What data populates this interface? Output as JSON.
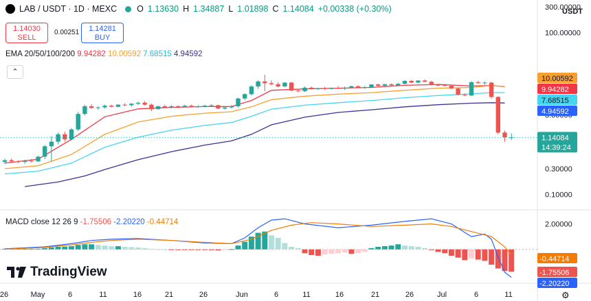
{
  "header": {
    "symbol": "LAB / USDT · 1D · MEXC",
    "open_label": "O",
    "open": "1.13630",
    "high_label": "H",
    "high": "1.34887",
    "low_label": "L",
    "low": "1.01898",
    "close_label": "C",
    "close": "1.14084",
    "change": "+0.00338 (+0.30%)"
  },
  "trade": {
    "sell_price": "1.14030",
    "sell_label": "SELL",
    "spread": "0.00251",
    "buy_price": "1.14281",
    "buy_label": "BUY"
  },
  "currency": "USDT",
  "ema_legend": {
    "name": "EMA 20/50/100/200",
    "v20": "9.94282",
    "v50": "10.00592",
    "v100": "7.68515",
    "v200": "4.94592"
  },
  "macd_legend": {
    "name": "MACD close 12 26 9",
    "hist": "-1.75506",
    "macd": "-2.20220",
    "signal": "-0.44714"
  },
  "brand": "TradingView",
  "icons": {
    "collapse": "chevron-up-icon",
    "settings": "gear-icon"
  },
  "colors": {
    "up": "#26a69a",
    "down": "#ef5350",
    "ema20": "#f23645",
    "ema50": "#f7a031",
    "ema100": "#43d6f0",
    "ema200": "#3c3094",
    "macd": "#2962ff",
    "signal": "#f57c00"
  },
  "chart_data": [
    {
      "type": "candlestick",
      "title": "LAB / USDT · 1D · MEXC",
      "yscale": "log",
      "ylim": [
        0.055,
        400
      ],
      "y_ticks": [
        "300.00000",
        "100.00000",
        "3.00000",
        "0.30000",
        "0.10000"
      ],
      "x_ticks": [
        "26",
        "May",
        "6",
        "11",
        "16",
        "21",
        "26",
        "Jun",
        "6",
        "11",
        "16",
        "21",
        "26",
        "Jul",
        "6",
        "11"
      ],
      "candles": [
        [
          0.4,
          0.46,
          0.37,
          0.43
        ],
        [
          0.43,
          0.46,
          0.4,
          0.41
        ],
        [
          0.41,
          0.43,
          0.38,
          0.4
        ],
        [
          0.4,
          0.44,
          0.37,
          0.42
        ],
        [
          0.42,
          0.45,
          0.39,
          0.41
        ],
        [
          0.41,
          0.52,
          0.4,
          0.5
        ],
        [
          0.5,
          0.82,
          0.45,
          0.78
        ],
        [
          0.78,
          1.2,
          0.4,
          0.95
        ],
        [
          0.95,
          1.4,
          0.85,
          1.3
        ],
        [
          1.3,
          1.45,
          0.95,
          1.05
        ],
        [
          1.05,
          1.7,
          1.0,
          1.6
        ],
        [
          1.6,
          3.4,
          1.5,
          3.1
        ],
        [
          3.1,
          4.6,
          2.9,
          4.3
        ],
        [
          4.3,
          4.7,
          3.9,
          4.0
        ],
        [
          4.0,
          4.3,
          3.7,
          4.1
        ],
        [
          4.1,
          4.6,
          3.9,
          4.4
        ],
        [
          4.4,
          4.6,
          4.1,
          4.2
        ],
        [
          4.2,
          4.7,
          4.1,
          4.6
        ],
        [
          4.6,
          4.9,
          4.3,
          4.5
        ],
        [
          4.5,
          4.9,
          4.2,
          4.8
        ],
        [
          4.8,
          5.2,
          4.5,
          5.0
        ],
        [
          5.0,
          5.4,
          4.4,
          4.6
        ],
        [
          4.6,
          4.8,
          3.5,
          3.8
        ],
        [
          3.8,
          4.4,
          3.7,
          4.3
        ],
        [
          4.3,
          4.6,
          4.0,
          4.1
        ],
        [
          4.1,
          4.5,
          3.9,
          4.3
        ],
        [
          4.3,
          4.5,
          4.0,
          4.2
        ],
        [
          4.2,
          4.6,
          4.1,
          4.4
        ],
        [
          4.4,
          4.6,
          4.1,
          4.2
        ],
        [
          4.2,
          4.5,
          4.0,
          4.3
        ],
        [
          4.3,
          4.6,
          4.1,
          4.4
        ],
        [
          4.4,
          4.7,
          4.2,
          4.5
        ],
        [
          4.5,
          4.6,
          3.8,
          3.9
        ],
        [
          3.9,
          4.2,
          3.7,
          4.1
        ],
        [
          4.1,
          4.5,
          3.9,
          4.3
        ],
        [
          4.3,
          6.2,
          4.1,
          6.0
        ],
        [
          6.0,
          7.5,
          5.6,
          7.2
        ],
        [
          7.2,
          10.5,
          6.8,
          10.0
        ],
        [
          10.0,
          13.0,
          9.0,
          12.4
        ],
        [
          12.4,
          16.5,
          8.2,
          11.5
        ],
        [
          11.5,
          13.0,
          10.5,
          11.0
        ],
        [
          11.0,
          12.0,
          9.7,
          10.0
        ],
        [
          10.0,
          12.0,
          9.8,
          11.8
        ],
        [
          11.8,
          12.2,
          8.1,
          8.4
        ],
        [
          8.4,
          9.0,
          7.8,
          8.2
        ],
        [
          8.2,
          10.0,
          7.9,
          9.5
        ],
        [
          9.5,
          10.0,
          8.8,
          9.0
        ],
        [
          9.0,
          9.5,
          8.7,
          9.3
        ],
        [
          9.3,
          9.8,
          8.6,
          9.0
        ],
        [
          9.0,
          9.6,
          8.8,
          9.4
        ],
        [
          9.4,
          10.2,
          8.9,
          9.1
        ],
        [
          9.1,
          10.0,
          8.6,
          9.4
        ],
        [
          9.4,
          10.3,
          9.2,
          10.1
        ],
        [
          10.1,
          10.5,
          9.4,
          9.6
        ],
        [
          9.6,
          10.2,
          9.0,
          9.7
        ],
        [
          9.7,
          11.0,
          9.4,
          10.9
        ],
        [
          10.9,
          11.3,
          10.0,
          10.3
        ],
        [
          10.3,
          11.2,
          10.1,
          11.0
        ],
        [
          11.0,
          11.4,
          10.2,
          10.5
        ],
        [
          10.5,
          11.6,
          10.3,
          11.2
        ],
        [
          11.2,
          13.0,
          10.9,
          12.7
        ],
        [
          12.7,
          13.2,
          11.6,
          11.8
        ],
        [
          11.8,
          13.0,
          11.5,
          12.9
        ],
        [
          12.9,
          13.5,
          12.0,
          12.2
        ],
        [
          12.2,
          12.8,
          10.4,
          10.7
        ],
        [
          10.7,
          11.2,
          10.2,
          10.6
        ],
        [
          10.6,
          11.1,
          10.1,
          10.3
        ],
        [
          10.3,
          10.8,
          9.0,
          9.2
        ],
        [
          9.2,
          9.6,
          6.8,
          7.0
        ],
        [
          7.0,
          7.4,
          6.6,
          6.8
        ],
        [
          6.8,
          12.5,
          6.6,
          12.0
        ],
        [
          12.0,
          12.8,
          11.2,
          11.6
        ],
        [
          11.6,
          12.3,
          10.8,
          11.8
        ],
        [
          11.8,
          12.2,
          6.0,
          6.4
        ],
        [
          6.4,
          6.6,
          1.3,
          1.4
        ],
        [
          1.4,
          1.52,
          0.95,
          1.14
        ],
        [
          1.136,
          1.349,
          1.019,
          1.141
        ]
      ],
      "ema": {
        "ema20": [
          [
            0,
            0.38
          ],
          [
            5,
            0.45
          ],
          [
            10,
            1.05
          ],
          [
            15,
            2.75
          ],
          [
            20,
            3.85
          ],
          [
            25,
            4.1
          ],
          [
            30,
            4.25
          ],
          [
            34,
            4.25
          ],
          [
            37,
            5.5
          ],
          [
            40,
            8.5
          ],
          [
            45,
            9.0
          ],
          [
            50,
            9.3
          ],
          [
            55,
            9.6
          ],
          [
            60,
            10.5
          ],
          [
            65,
            10.9
          ],
          [
            70,
            10.2
          ],
          [
            73,
            10.4
          ],
          [
            75,
            9.94
          ]
        ],
        "ema50": [
          [
            0,
            0.3
          ],
          [
            5,
            0.34
          ],
          [
            10,
            0.55
          ],
          [
            15,
            1.3
          ],
          [
            20,
            2.2
          ],
          [
            25,
            2.8
          ],
          [
            30,
            3.2
          ],
          [
            34,
            3.4
          ],
          [
            37,
            4.2
          ],
          [
            40,
            5.7
          ],
          [
            45,
            6.6
          ],
          [
            50,
            7.2
          ],
          [
            55,
            7.7
          ],
          [
            60,
            8.5
          ],
          [
            65,
            9.3
          ],
          [
            70,
            9.6
          ],
          [
            73,
            10.4
          ],
          [
            75,
            10.01
          ]
        ],
        "ema100": [
          [
            0,
            0.24
          ],
          [
            5,
            0.27
          ],
          [
            10,
            0.38
          ],
          [
            15,
            0.75
          ],
          [
            20,
            1.15
          ],
          [
            25,
            1.55
          ],
          [
            30,
            1.9
          ],
          [
            34,
            2.15
          ],
          [
            37,
            2.8
          ],
          [
            40,
            3.8
          ],
          [
            45,
            4.5
          ],
          [
            50,
            5.0
          ],
          [
            55,
            5.5
          ],
          [
            60,
            6.2
          ],
          [
            65,
            6.8
          ],
          [
            70,
            7.3
          ],
          [
            73,
            7.7
          ],
          [
            75,
            7.69
          ]
        ],
        "ema200": [
          [
            3,
            0.14
          ],
          [
            8,
            0.17
          ],
          [
            12,
            0.22
          ],
          [
            15,
            0.29
          ],
          [
            20,
            0.44
          ],
          [
            25,
            0.62
          ],
          [
            30,
            0.82
          ],
          [
            34,
            0.98
          ],
          [
            37,
            1.3
          ],
          [
            40,
            1.95
          ],
          [
            45,
            2.7
          ],
          [
            50,
            3.3
          ],
          [
            55,
            3.7
          ],
          [
            60,
            4.2
          ],
          [
            65,
            4.6
          ],
          [
            70,
            4.9
          ],
          [
            73,
            5.0
          ],
          [
            75,
            4.95
          ]
        ]
      },
      "value_labels": [
        "10.00592",
        "9.94282",
        "7.68515",
        "4.94592",
        "1.14084",
        "14:39:24"
      ]
    },
    {
      "type": "macd",
      "title": "MACD close 12 26 9",
      "ylim": [
        -2.6,
        3.0
      ],
      "y_ticks": [
        "2.00000",
        "-0.44714",
        "-1.75506",
        "-2.20220"
      ],
      "histogram": [
        0.05,
        0.05,
        0.05,
        0.05,
        0.05,
        0.05,
        0.1,
        0.15,
        0.2,
        0.22,
        0.25,
        0.35,
        0.4,
        0.4,
        0.35,
        0.3,
        0.25,
        0.25,
        0.2,
        0.18,
        0.15,
        0.1,
        0.05,
        0.02,
        0.0,
        -0.02,
        -0.03,
        -0.04,
        -0.05,
        -0.05,
        -0.05,
        -0.06,
        -0.08,
        -0.06,
        0.02,
        0.3,
        0.6,
        1.0,
        1.3,
        1.4,
        1.1,
        0.9,
        0.5,
        0.2,
        0.1,
        -0.3,
        -0.45,
        -0.5,
        -0.4,
        -0.35,
        -0.3,
        -0.25,
        -0.35,
        -0.3,
        -0.2,
        0.1,
        0.2,
        0.25,
        0.3,
        0.4,
        0.3,
        0.25,
        0.2,
        0.1,
        -0.05,
        -0.2,
        -0.3,
        -0.5,
        -0.65,
        -0.85,
        -0.7,
        -0.8,
        -0.9,
        -1.2,
        -1.5,
        -1.7,
        -1.755
      ],
      "macd": [
        [
          0,
          0.05
        ],
        [
          6,
          0.2
        ],
        [
          10,
          0.45
        ],
        [
          13,
          0.7
        ],
        [
          16,
          0.8
        ],
        [
          20,
          0.85
        ],
        [
          25,
          0.7
        ],
        [
          30,
          0.5
        ],
        [
          34,
          0.45
        ],
        [
          36,
          0.9
        ],
        [
          38,
          1.7
        ],
        [
          40,
          2.3
        ],
        [
          42,
          2.4
        ],
        [
          45,
          2.0
        ],
        [
          50,
          1.7
        ],
        [
          55,
          1.9
        ],
        [
          60,
          2.2
        ],
        [
          64,
          2.4
        ],
        [
          67,
          2.0
        ],
        [
          70,
          1.0
        ],
        [
          72,
          1.2
        ],
        [
          73,
          0.8
        ],
        [
          74,
          -0.6
        ],
        [
          75,
          -1.8
        ],
        [
          76,
          -2.2
        ]
      ],
      "signal": [
        [
          0,
          0.02
        ],
        [
          6,
          0.15
        ],
        [
          10,
          0.35
        ],
        [
          13,
          0.55
        ],
        [
          16,
          0.7
        ],
        [
          20,
          0.8
        ],
        [
          25,
          0.7
        ],
        [
          30,
          0.55
        ],
        [
          34,
          0.45
        ],
        [
          37,
          0.8
        ],
        [
          40,
          1.5
        ],
        [
          43,
          1.9
        ],
        [
          46,
          2.1
        ],
        [
          50,
          2.0
        ],
        [
          55,
          1.8
        ],
        [
          60,
          1.9
        ],
        [
          64,
          2.0
        ],
        [
          67,
          1.8
        ],
        [
          70,
          1.4
        ],
        [
          73,
          1.0
        ],
        [
          75,
          0.2
        ],
        [
          76,
          -0.45
        ]
      ]
    }
  ]
}
